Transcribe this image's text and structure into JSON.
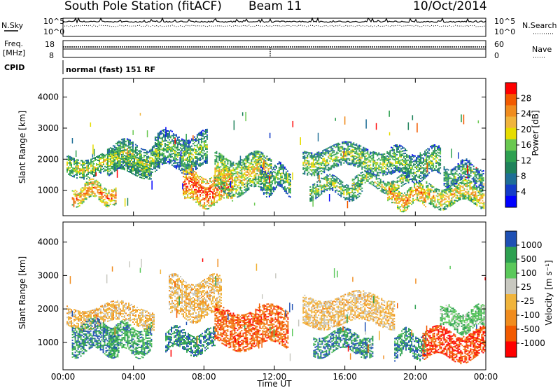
{
  "header": {
    "station": "South Pole Station (fitACF)",
    "beam": "Beam 11",
    "date": "10/Oct/2014"
  },
  "side_labels": {
    "nsky": "N.Sky",
    "nsearch": "N.Search",
    "freq_line1": "Freq.",
    "freq_line2": "[MHz]",
    "nave": "Nave",
    "cpid": "CPID"
  },
  "cpid_text": "normal (fast) 151 RF",
  "noise_panel": {
    "left_ticks": [
      "10^5",
      "10^0"
    ],
    "right_ticks": [
      "10^5",
      "10^0"
    ]
  },
  "freq_panel": {
    "left_ticks": [
      "18",
      "8"
    ],
    "right_ticks": [
      "60",
      "0"
    ]
  },
  "chart_data": [
    {
      "type": "heatmap",
      "quantity": "Power",
      "ylabel": "Slant Range [km]",
      "ylim": [
        180,
        4600
      ],
      "yticks": [
        "1000",
        "2000",
        "3000",
        "4000"
      ],
      "xlim": [
        0,
        24
      ],
      "colorbar_label": "Power [dB]",
      "colorbar_ticks": [
        "28",
        "24",
        "20",
        "16",
        "12",
        "8",
        "4"
      ],
      "colorbar_colors": [
        "#ff0000",
        "#f25a00",
        "#f08c1e",
        "#f0b43c",
        "#e6dc00",
        "#69c850",
        "#2da050",
        "#1e825a",
        "#1e6e96",
        "#143cc8",
        "#0000ff"
      ],
      "bands": [
        {
          "t0": 0.2,
          "t1": 5.0,
          "r0": 1550,
          "r1": 2150,
          "level": 0.6
        },
        {
          "t0": 0.5,
          "t1": 3.0,
          "r0": 650,
          "r1": 1200,
          "level": 0.8
        },
        {
          "t0": 2.5,
          "t1": 5.5,
          "r0": 1600,
          "r1": 2500,
          "level": 0.55
        },
        {
          "t0": 5.2,
          "t1": 8.2,
          "r0": 1700,
          "r1": 2800,
          "level": 0.5
        },
        {
          "t0": 6.8,
          "t1": 9.6,
          "r0": 600,
          "r1": 1550,
          "level": 0.9
        },
        {
          "t0": 8.6,
          "t1": 11.8,
          "r0": 950,
          "r1": 2100,
          "level": 0.65
        },
        {
          "t0": 11.2,
          "t1": 12.9,
          "r0": 950,
          "r1": 1750,
          "level": 0.5
        },
        {
          "t0": 13.6,
          "t1": 18.6,
          "r0": 1650,
          "r1": 2400,
          "level": 0.55
        },
        {
          "t0": 14.0,
          "t1": 17.0,
          "r0": 850,
          "r1": 1350,
          "level": 0.55
        },
        {
          "t0": 16.4,
          "t1": 19.6,
          "r0": 1050,
          "r1": 1450,
          "level": 0.6
        },
        {
          "t0": 18.6,
          "t1": 21.4,
          "r0": 1400,
          "r1": 2300,
          "level": 0.5
        },
        {
          "t0": 18.4,
          "t1": 20.6,
          "r0": 500,
          "r1": 1100,
          "level": 0.8
        },
        {
          "t0": 20.6,
          "t1": 23.9,
          "r0": 550,
          "r1": 1200,
          "level": 0.7
        },
        {
          "t0": 21.6,
          "t1": 23.9,
          "r0": 1250,
          "r1": 1850,
          "level": 0.45
        }
      ]
    },
    {
      "type": "heatmap",
      "quantity": "Velocity",
      "ylabel": "Slant Range [km]",
      "ylim": [
        180,
        4600
      ],
      "yticks": [
        "1000",
        "2000",
        "3000",
        "4000"
      ],
      "xlim": [
        0,
        24
      ],
      "xticks": [
        "00:00",
        "04:00",
        "08:00",
        "12:00",
        "16:00",
        "20:00",
        "00:00"
      ],
      "xlabel": "Time UT",
      "colorbar_label": "Velocity [m s⁻¹]",
      "colorbar_ticks": [
        "1000",
        "500",
        "100",
        "25",
        "-25",
        "-100",
        "-500",
        "-1000"
      ],
      "colorbar_colors": [
        "#1e50b4",
        "#2da050",
        "#5ac85a",
        "#c8c8c0",
        "#f0b43c",
        "#f08c1e",
        "#f25a00",
        "#ff0000"
      ],
      "bands": [
        {
          "t0": 0.2,
          "t1": 5.2,
          "r0": 1550,
          "r1": 2100,
          "level": 0.55
        },
        {
          "t0": 0.5,
          "t1": 3.2,
          "r0": 700,
          "r1": 1600,
          "level": 0.15
        },
        {
          "t0": 2.6,
          "t1": 5.0,
          "r0": 700,
          "r1": 1500,
          "level": 0.2
        },
        {
          "t0": 5.8,
          "t1": 8.6,
          "r0": 750,
          "r1": 1350,
          "level": 0.15
        },
        {
          "t0": 6.0,
          "t1": 9.0,
          "r0": 1750,
          "r1": 2900,
          "level": 0.55
        },
        {
          "t0": 8.6,
          "t1": 12.8,
          "r0": 900,
          "r1": 2000,
          "level": 0.8
        },
        {
          "t0": 13.6,
          "t1": 18.8,
          "r0": 1550,
          "r1": 2400,
          "level": 0.55
        },
        {
          "t0": 14.2,
          "t1": 17.6,
          "r0": 700,
          "r1": 1300,
          "level": 0.15
        },
        {
          "t0": 18.8,
          "t1": 20.6,
          "r0": 600,
          "r1": 1300,
          "level": 0.15
        },
        {
          "t0": 20.4,
          "t1": 23.9,
          "r0": 550,
          "r1": 1350,
          "level": 0.85
        },
        {
          "t0": 21.4,
          "t1": 23.9,
          "r0": 1400,
          "r1": 2000,
          "level": 0.3
        }
      ]
    }
  ]
}
